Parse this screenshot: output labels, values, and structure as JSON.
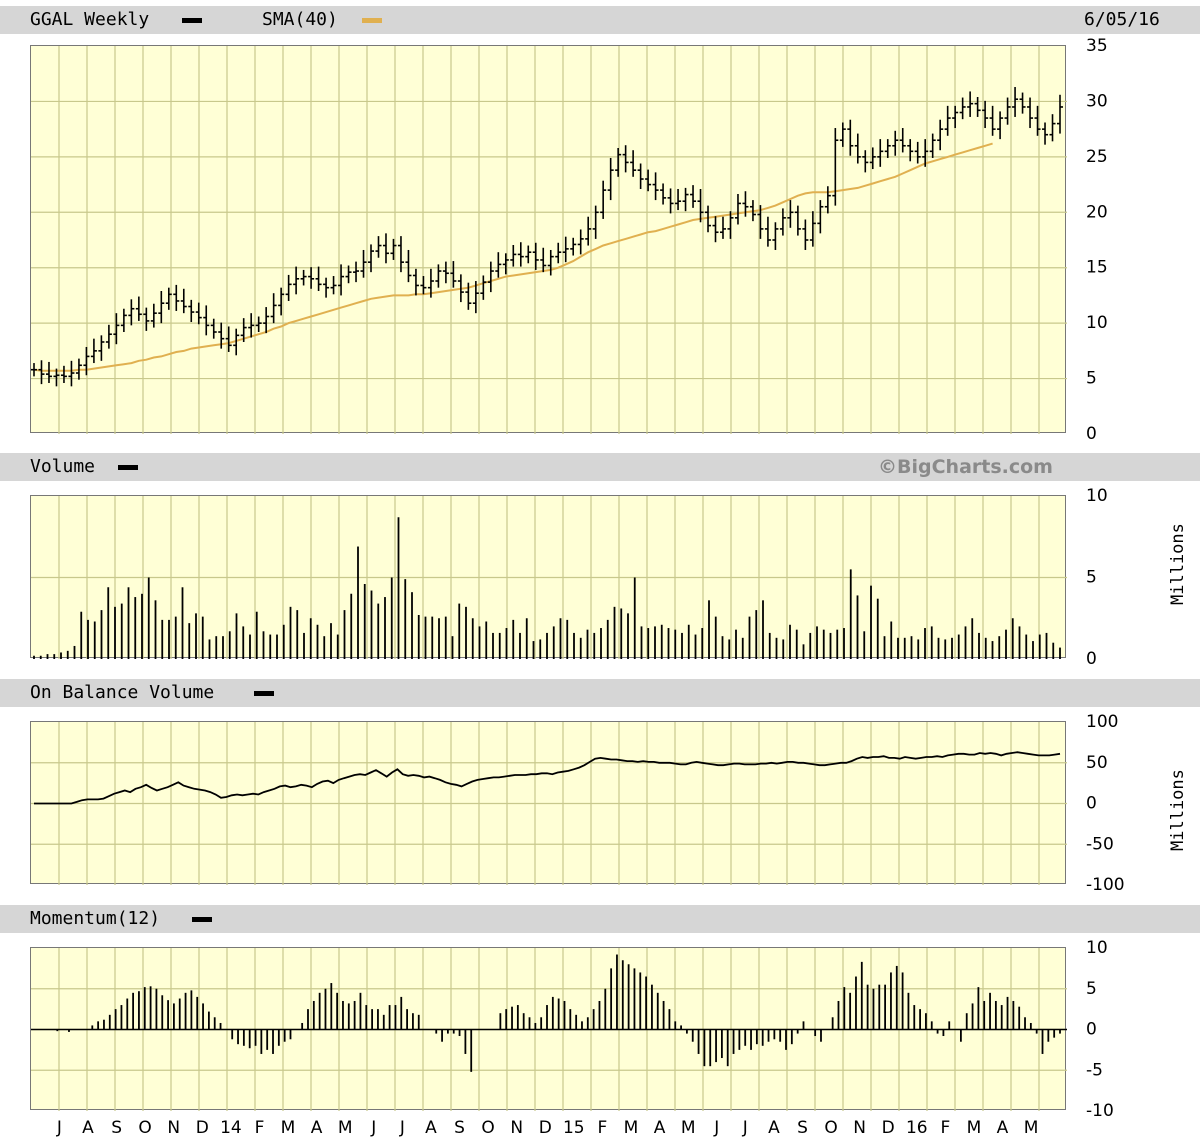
{
  "header": {
    "symbol_label": "GGAL Weekly",
    "sma_label": "SMA(40)",
    "date": "6/05/16",
    "volume_label": "Volume",
    "copyright": "©BigCharts.com",
    "obv_label": "On Balance Volume",
    "momentum_label": "Momentum(12)",
    "millions_label": "Millions"
  },
  "colors": {
    "background": "#ffffff",
    "plot_background": "#ffffd6",
    "grid": "#c8c88c",
    "band": "#d6d6d6",
    "price": "#000000",
    "sma": "#e0b050",
    "copyright": "#8a8a8a"
  },
  "chart_data": [
    {
      "type": "ohlc",
      "title": "GGAL Weekly",
      "series": [
        {
          "name": "GGAL Weekly",
          "values": [
            5.8,
            5.4,
            5.2,
            5.3,
            5.2,
            5.5,
            6.2,
            7.0,
            7.5,
            8.3,
            9.0,
            9.8,
            10.7,
            11.3,
            10.8,
            10.2,
            10.9,
            11.8,
            12.6,
            12.0,
            11.5,
            11.0,
            10.5,
            9.8,
            9.2,
            8.6,
            8.0,
            8.9,
            9.6,
            9.8,
            10.0,
            10.6,
            11.6,
            12.6,
            13.5,
            14.0,
            14.2,
            14.0,
            13.5,
            13.2,
            13.4,
            14.2,
            14.6,
            14.7,
            15.5,
            16.5,
            17.0,
            16.3,
            17.0,
            15.5,
            14.3,
            13.4,
            13.2,
            13.8,
            14.7,
            14.5,
            13.8,
            12.8,
            11.8,
            12.7,
            13.7,
            14.7,
            15.3,
            15.7,
            16.2,
            16.0,
            16.4,
            15.7,
            15.2,
            16.0,
            16.4,
            16.7,
            17.1,
            17.6,
            18.5,
            20.0,
            22.0,
            23.8,
            25.2,
            24.5,
            23.8,
            23.0,
            22.5,
            22.0,
            21.3,
            20.8,
            21.0,
            21.6,
            21.0,
            20.0,
            18.8,
            18.2,
            18.5,
            19.5,
            20.8,
            20.5,
            19.8,
            18.5,
            17.5,
            18.5,
            19.5,
            20.0,
            18.5,
            17.5,
            19.0,
            20.5,
            21.5,
            26.5,
            27.5,
            26.0,
            25.0,
            24.5,
            25.0,
            25.5,
            26.0,
            26.5,
            26.0,
            25.5,
            25.0,
            25.5,
            26.5,
            27.5,
            28.5,
            29.0,
            29.5,
            29.8,
            29.2,
            28.5,
            27.5,
            28.5,
            29.5,
            30.2,
            29.5,
            28.5,
            27.5,
            27.0,
            28.0,
            29.5
          ]
        },
        {
          "name": "SMA(40)",
          "values": [
            5.8,
            5.7,
            5.7,
            5.7,
            5.7,
            5.7,
            5.8,
            5.8,
            5.9,
            6.0,
            6.1,
            6.2,
            6.3,
            6.4,
            6.6,
            6.7,
            6.9,
            7.0,
            7.2,
            7.4,
            7.5,
            7.7,
            7.8,
            7.9,
            8.0,
            8.1,
            8.2,
            8.4,
            8.6,
            8.8,
            9.0,
            9.2,
            9.5,
            9.7,
            10.0,
            10.2,
            10.4,
            10.6,
            10.8,
            11.0,
            11.2,
            11.4,
            11.6,
            11.8,
            12.0,
            12.2,
            12.3,
            12.4,
            12.5,
            12.5,
            12.5,
            12.6,
            12.6,
            12.7,
            12.8,
            12.9,
            13.0,
            13.1,
            13.2,
            13.4,
            13.6,
            13.8,
            14.0,
            14.2,
            14.3,
            14.4,
            14.5,
            14.6,
            14.7,
            14.8,
            15.0,
            15.3,
            15.6,
            16.0,
            16.4,
            16.7,
            17.0,
            17.2,
            17.4,
            17.6,
            17.8,
            18.0,
            18.2,
            18.3,
            18.5,
            18.7,
            18.9,
            19.1,
            19.3,
            19.4,
            19.5,
            19.6,
            19.7,
            19.8,
            19.9,
            20.0,
            20.1,
            20.2,
            20.4,
            20.6,
            20.9,
            21.2,
            21.5,
            21.7,
            21.8,
            21.8,
            21.8,
            21.9,
            22.0,
            22.1,
            22.2,
            22.4,
            22.6,
            22.8,
            23.0,
            23.2,
            23.5,
            23.8,
            24.1,
            24.4,
            24.6,
            24.8,
            25.0,
            25.2,
            25.4,
            25.6,
            25.8,
            26.0,
            26.2
          ]
        }
      ],
      "ylim": [
        0,
        35
      ],
      "yticks": [
        0,
        5,
        10,
        15,
        20,
        25,
        30,
        35
      ],
      "x_month_labels": [
        "J",
        "A",
        "S",
        "O",
        "N",
        "D",
        "14",
        "F",
        "M",
        "A",
        "M",
        "J",
        "J",
        "A",
        "S",
        "O",
        "N",
        "D",
        "15",
        "F",
        "M",
        "A",
        "M",
        "J",
        "J",
        "A",
        "S",
        "O",
        "N",
        "D",
        "16",
        "F",
        "M",
        "A",
        "M"
      ],
      "last_date": "6/05/16",
      "grid": true
    },
    {
      "type": "bar",
      "title": "Volume",
      "ylabel": "Millions",
      "ylim": [
        0,
        10
      ],
      "yticks": [
        0,
        5,
        10
      ],
      "series": [
        {
          "name": "Volume",
          "values": [
            0.2,
            0.2,
            0.3,
            0.3,
            0.4,
            0.5,
            0.8,
            2.9,
            2.4,
            2.3,
            3.0,
            4.4,
            3.2,
            3.4,
            4.4,
            3.8,
            4.0,
            5.0,
            3.6,
            2.4,
            2.4,
            2.6,
            4.4,
            2.2,
            2.8,
            2.6,
            1.2,
            1.4,
            1.4,
            1.7,
            2.8,
            2.0,
            1.5,
            2.9,
            1.7,
            1.5,
            1.5,
            2.1,
            3.2,
            3.0,
            1.6,
            2.5,
            2.1,
            1.4,
            2.2,
            1.5,
            3.0,
            4.0,
            6.9,
            4.6,
            4.2,
            3.4,
            3.8,
            5.0,
            8.7,
            4.9,
            4.1,
            2.7,
            2.6,
            2.6,
            2.5,
            2.6,
            1.4,
            3.4,
            3.2,
            2.5,
            2.0,
            2.3,
            1.6,
            1.6,
            1.9,
            2.4,
            1.6,
            2.5,
            1.1,
            1.2,
            1.6,
            2.0,
            2.5,
            2.4,
            1.6,
            1.3,
            1.8,
            1.6,
            1.9,
            2.4,
            3.2,
            3.1,
            2.8,
            5.0,
            2.0,
            1.9,
            2.0,
            2.1,
            1.9,
            1.8,
            1.6,
            2.1,
            1.5,
            1.9,
            3.6,
            2.6,
            1.4,
            1.2,
            1.8,
            1.3,
            2.6,
            3.0,
            3.6,
            1.6,
            1.3,
            1.2,
            2.1,
            1.8,
            0.9,
            1.6,
            2.0,
            1.8,
            1.6,
            1.8,
            1.9,
            5.5,
            3.9,
            1.7,
            4.5,
            3.7,
            1.4,
            2.3,
            1.3,
            1.3,
            1.4,
            1.2,
            1.9,
            2.0,
            1.3,
            1.2,
            1.3,
            1.5,
            2.0,
            2.5,
            1.6,
            1.3,
            1.1,
            1.4,
            1.8,
            2.5,
            2.0,
            1.5,
            1.1,
            1.5,
            1.6,
            1.0,
            0.7
          ]
        }
      ],
      "grid": true
    },
    {
      "type": "line",
      "title": "On Balance Volume",
      "ylabel": "Millions",
      "ylim": [
        -100,
        100
      ],
      "yticks": [
        -100,
        -50,
        0,
        50,
        100
      ],
      "series": [
        {
          "name": "On Balance Volume",
          "values": [
            0,
            0,
            0,
            0,
            0,
            0,
            0,
            0,
            2,
            4,
            5,
            5,
            5,
            6,
            9,
            12,
            14,
            16,
            14,
            18,
            20,
            23,
            19,
            16,
            18,
            20,
            23,
            26,
            22,
            20,
            18,
            17,
            16,
            14,
            11,
            7,
            8,
            10,
            11,
            10,
            11,
            12,
            11,
            14,
            16,
            18,
            21,
            22,
            20,
            21,
            23,
            22,
            20,
            24,
            27,
            28,
            25,
            29,
            31,
            33,
            35,
            36,
            35,
            38,
            41,
            37,
            33,
            38,
            42,
            36,
            34,
            35,
            34,
            32,
            33,
            31,
            29,
            26,
            24,
            23,
            21,
            24,
            27,
            29,
            30,
            31,
            32,
            32,
            33,
            34,
            35,
            35,
            35,
            36,
            36,
            37,
            37,
            36,
            38,
            39,
            40,
            42,
            44,
            47,
            51,
            55,
            56,
            55,
            54,
            54,
            53,
            52,
            52,
            51,
            52,
            51,
            51,
            50,
            50,
            50,
            49,
            48,
            48,
            50,
            51,
            50,
            49,
            48,
            47,
            47,
            48,
            49,
            49,
            48,
            48,
            48,
            49,
            49,
            50,
            49,
            50,
            51,
            51,
            50,
            50,
            49,
            48,
            47,
            47,
            48,
            49,
            50,
            50,
            52,
            55,
            57,
            56,
            57,
            57,
            58,
            56,
            56,
            55,
            57,
            56,
            55,
            56,
            57,
            57,
            58,
            57,
            59,
            60,
            61,
            61,
            60,
            60,
            62,
            61,
            62,
            61,
            59,
            61,
            62,
            63,
            62,
            61,
            60,
            59,
            59,
            59,
            60,
            61
          ]
        }
      ],
      "grid": true
    },
    {
      "type": "bar",
      "title": "Momentum(12)",
      "ylim": [
        -10,
        10
      ],
      "yticks": [
        -10,
        -5,
        0,
        5,
        10
      ],
      "series": [
        {
          "name": "Momentum(12)",
          "values": [
            0,
            0,
            0,
            0,
            -0.2,
            0,
            -0.3,
            0,
            0,
            0,
            0.5,
            1.0,
            1.2,
            1.8,
            2.5,
            3.0,
            3.8,
            4.5,
            4.7,
            5.2,
            5.3,
            5.0,
            4.2,
            3.6,
            3.2,
            3.8,
            4.5,
            4.8,
            4.0,
            3.2,
            2.2,
            1.5,
            0.8,
            0,
            -1.2,
            -1.8,
            -2.0,
            -2.3,
            -2.0,
            -3.0,
            -2.5,
            -3.0,
            -2.0,
            -1.5,
            -1.2,
            0,
            0.8,
            2.5,
            3.5,
            4.5,
            5.0,
            5.7,
            4.5,
            3.5,
            3.2,
            3.5,
            4.5,
            3.0,
            2.5,
            2.5,
            1.8,
            3.0,
            3.0,
            4.0,
            2.5,
            2.0,
            1.8,
            0,
            0,
            -0.5,
            -1.5,
            -0.5,
            -0.5,
            -0.8,
            -3.0,
            -5.2,
            0,
            0,
            0,
            0,
            2.0,
            2.5,
            2.8,
            3.0,
            2.0,
            1.5,
            0.8,
            1.5,
            3.0,
            4.0,
            3.8,
            3.5,
            2.5,
            1.8,
            1.0,
            1.5,
            2.5,
            3.5,
            5.0,
            7.5,
            9.2,
            8.5,
            8.0,
            7.5,
            7.0,
            6.5,
            5.5,
            4.5,
            3.5,
            2.5,
            1.0,
            0.5,
            -0.5,
            -1.5,
            -3.0,
            -4.5,
            -4.5,
            -4.0,
            -3.5,
            -4.5,
            -3.0,
            -2.5,
            -2.0,
            -2.5,
            -1.8,
            -2.0,
            -1.5,
            -1.2,
            -1.5,
            -2.5,
            -1.8,
            -0.5,
            1.0,
            0,
            -0.8,
            -1.5,
            0,
            1.5,
            3.5,
            5.2,
            4.5,
            6.5,
            8.3,
            5.5,
            5.0,
            5.5,
            5.5,
            7.0,
            7.8,
            7.0,
            4.5,
            3.0,
            2.5,
            2.0,
            1.0,
            -0.5,
            -0.8,
            1.0,
            0,
            -1.5,
            2.0,
            3.2,
            5.2,
            3.5,
            4.5,
            3.5,
            3.0,
            4.0,
            3.5,
            2.8,
            1.5,
            0.8,
            -0.5,
            -3.0,
            -1.5,
            -1.0,
            -0.5
          ]
        }
      ],
      "grid": true
    }
  ]
}
